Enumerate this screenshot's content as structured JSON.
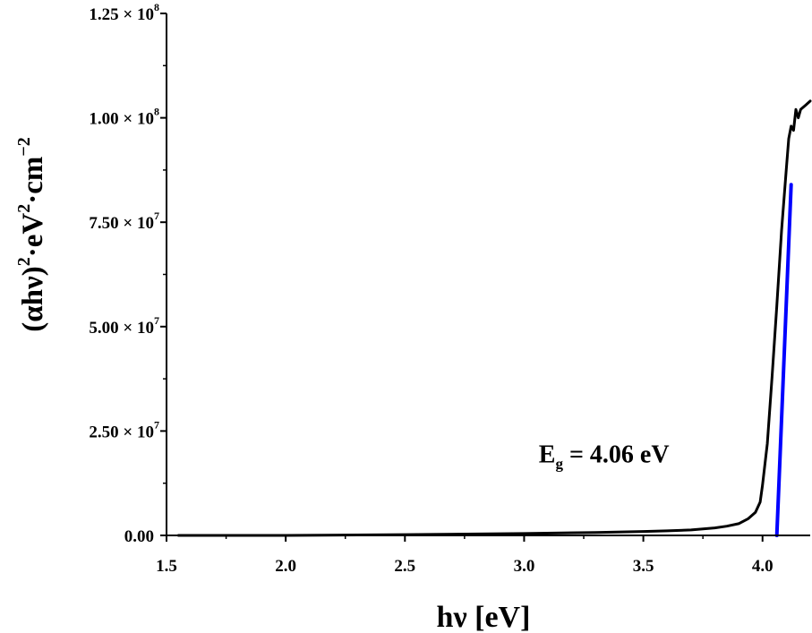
{
  "chart_data": {
    "type": "line",
    "xlabel": "hν [eV]",
    "ylabel": {
      "base": "(αhν)",
      "sup1": "2",
      "mid": "·eV",
      "sup2": "2",
      "tail": "·cm",
      "sup3": "−2"
    },
    "xlim": [
      1.5,
      4.2
    ],
    "ylim": [
      0,
      125000000
    ],
    "x_ticks": [
      {
        "value": 1.5,
        "label": "1.5"
      },
      {
        "value": 2.0,
        "label": "2.0"
      },
      {
        "value": 2.5,
        "label": "2.5"
      },
      {
        "value": 3.0,
        "label": "3.0"
      },
      {
        "value": 3.5,
        "label": "3.5"
      },
      {
        "value": 4.0,
        "label": "4.0"
      }
    ],
    "y_ticks": [
      {
        "value": 0,
        "mantissa": "0.00",
        "exp": ""
      },
      {
        "value": 25000000,
        "mantissa": "2.50 × 10",
        "exp": "7"
      },
      {
        "value": 50000000,
        "mantissa": "5.00 × 10",
        "exp": "7"
      },
      {
        "value": 75000000,
        "mantissa": "7.50 × 10",
        "exp": "7"
      },
      {
        "value": 100000000,
        "mantissa": "1.00 × 10",
        "exp": "8"
      },
      {
        "value": 125000000,
        "mantissa": "1.25 × 10",
        "exp": "8"
      }
    ],
    "series": [
      {
        "color": "#000000",
        "x": [
          1.55,
          2.0,
          2.5,
          3.0,
          3.3,
          3.5,
          3.6,
          3.7,
          3.8,
          3.85,
          3.9,
          3.94,
          3.97,
          3.99,
          4.0,
          4.02,
          4.04,
          4.06,
          4.08,
          4.1,
          4.11,
          4.12,
          4.13,
          4.14,
          4.15,
          4.16,
          4.18,
          4.2
        ],
        "y": [
          0,
          0,
          200000,
          450000,
          700000,
          950000,
          1100000,
          1300000,
          1800000,
          2200000,
          2800000,
          4000000,
          5500000,
          8000000,
          12000000,
          22000000,
          38000000,
          55000000,
          73000000,
          88000000,
          95000000,
          98000000,
          97000000,
          102000000,
          100000000,
          102000000,
          103000000,
          104000000
        ]
      },
      {
        "color": "#0000ff",
        "x": [
          4.06,
          4.12
        ],
        "y": [
          0,
          84000000
        ]
      }
    ],
    "annotation": {
      "main": "E",
      "sub": "g",
      "rest": " = 4.06 eV",
      "x": 3.85,
      "y": 11000000
    }
  }
}
